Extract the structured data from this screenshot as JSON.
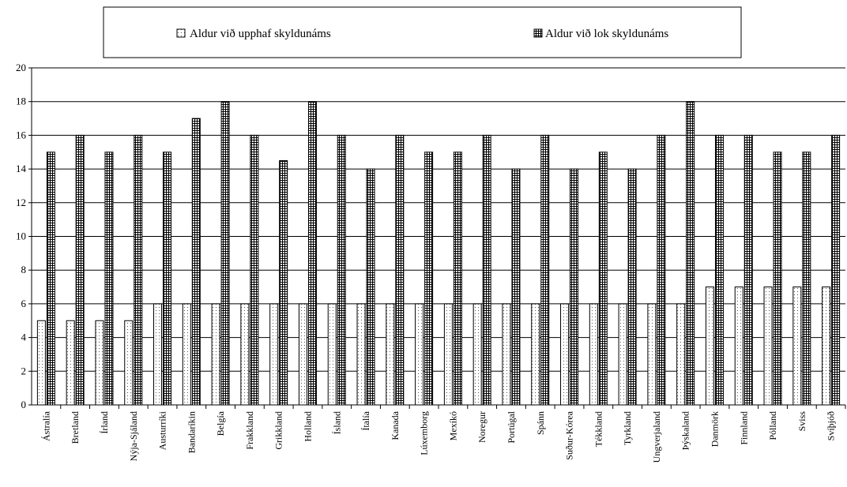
{
  "chart_data": {
    "type": "bar",
    "categories": [
      "Ástralía",
      "Bretland",
      "Írland",
      "Nýja-Sjáland",
      "Austurríki",
      "Bandaríkin",
      "Belgía",
      "Frakkland",
      "Grikkland",
      "Holland",
      "Ísland",
      "Ítalía",
      "Kanada",
      "Lúxemborg",
      "Mexíkó",
      "Noregur",
      "Portúgal",
      "Spánn",
      "Suður-Kórea",
      "Tékkland",
      "Tyrkland",
      "Ungverjaland",
      "Þýskaland",
      "Danmörk",
      "Finnland",
      "Pólland",
      "Sviss",
      "Svíþjóð"
    ],
    "series": [
      {
        "name": "Aldur við upphaf skyldunáms",
        "pattern": "dotted",
        "values": [
          5,
          5,
          5,
          5,
          6,
          6,
          6,
          6,
          6,
          6,
          6,
          6,
          6,
          6,
          6,
          6,
          6,
          6,
          6,
          6,
          6,
          6,
          6,
          7,
          7,
          7,
          7,
          7
        ]
      },
      {
        "name": "Aldur við lok skyldunáms",
        "pattern": "grid",
        "values": [
          15,
          16,
          15,
          16,
          15,
          17,
          18,
          16,
          14.5,
          18,
          16,
          14,
          16,
          15,
          15,
          16,
          14,
          16,
          14,
          15,
          14,
          16,
          18,
          16,
          16,
          15,
          15,
          16
        ]
      }
    ],
    "ylim": [
      0,
      20
    ],
    "yticks": [
      0,
      2,
      4,
      6,
      8,
      10,
      12,
      14,
      16,
      18,
      20
    ],
    "grid": true,
    "legend_position": "top",
    "colors": {
      "bar_fill": "#ffffff",
      "bar_stroke": "#000000",
      "grid": "#000000"
    }
  }
}
